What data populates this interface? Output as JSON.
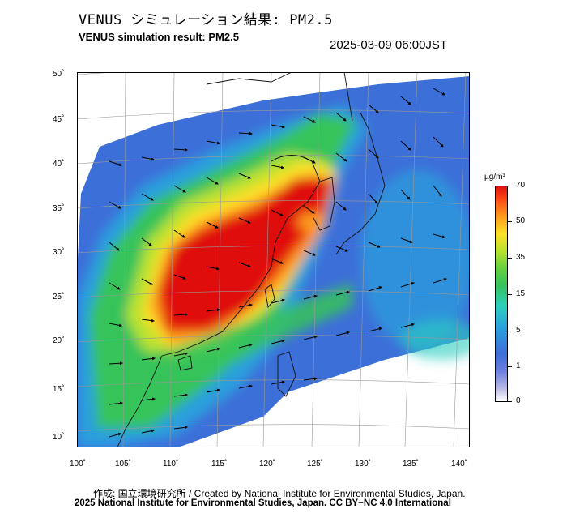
{
  "header": {
    "title_jp": "VENUS シミュレーション結果: PM2.5",
    "title_en": "VENUS simulation result: PM2.5",
    "timestamp": "2025-03-09 06:00JST"
  },
  "map": {
    "variable": "PM2.5",
    "lat_range": [
      9,
      51
    ],
    "lon_range": [
      100,
      141
    ],
    "lat_ticks": [
      "50˚",
      "45˚",
      "40˚",
      "35˚",
      "30˚",
      "25˚",
      "20˚",
      "15˚",
      "10˚"
    ],
    "lon_ticks": [
      "100˚",
      "105˚",
      "110˚",
      "115˚",
      "120˚",
      "125˚",
      "130˚",
      "135˚",
      "140˚"
    ],
    "features": [
      "coastlines",
      "country borders",
      "graticule",
      "wind vectors",
      "PM2.5 concentration field"
    ]
  },
  "colorbar": {
    "unit": "µg/m³",
    "levels": [
      "70",
      "50",
      "35",
      "15",
      "5",
      "1",
      "0"
    ],
    "colors": {
      "0": "#ffffff",
      "1": "#6b7fe0",
      "5": "#2a9fdd",
      "15": "#36c35a",
      "35": "#ffe02a",
      "50": "#ff7a18",
      "70": "#e0100e"
    }
  },
  "footer": {
    "credit_jp": "作成: 国立環境研究所 / Created by National Institute for Environmental Studies, Japan.",
    "license": "2025 National Institute for Environmental Studies, Japan. CC BY−NC 4.0 International"
  }
}
